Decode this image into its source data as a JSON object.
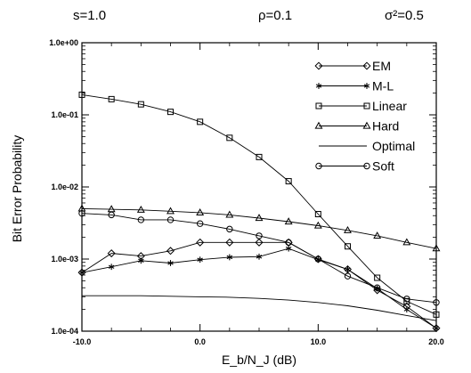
{
  "header": {
    "params": [
      "s=1.0",
      "ρ=0.1",
      "σ²=0.5"
    ]
  },
  "chart_data": {
    "type": "line",
    "title": "",
    "xlabel": "E_b/N_J (dB)",
    "ylabel": "Bit Error Probability",
    "xlim": [
      -10,
      20
    ],
    "ylim": [
      0.0001,
      1
    ],
    "yscale": "log",
    "grid": false,
    "legend_position": "top-right",
    "xticks": [
      -10,
      0,
      10,
      20
    ],
    "xtick_labels": [
      "-10.0",
      "0.0",
      "10.0",
      "20.0"
    ],
    "yticks": [
      0.0001,
      0.001,
      0.01,
      0.1,
      1
    ],
    "ytick_labels": [
      "1.0e-04",
      "1.0e-03",
      "1.0e-02",
      "1.0e-01",
      "1.0e+00"
    ],
    "series": [
      {
        "name": "EM",
        "marker": "diamond",
        "x": [
          -10,
          -7.5,
          -5,
          -2.5,
          0,
          2.5,
          5,
          7.5,
          10,
          12.5,
          15,
          17.5,
          20
        ],
        "y": [
          0.00065,
          0.0012,
          0.0011,
          0.0013,
          0.0017,
          0.0017,
          0.0017,
          0.0017,
          0.001,
          0.00072,
          0.00037,
          0.00022,
          0.00011
        ]
      },
      {
        "name": "M-L",
        "marker": "star",
        "x": [
          -10,
          -7.5,
          -5,
          -2.5,
          0,
          2.5,
          5,
          7.5,
          10,
          12.5,
          15,
          17.5,
          20
        ],
        "y": [
          0.00065,
          0.00078,
          0.00095,
          0.00088,
          0.00098,
          0.00106,
          0.00108,
          0.0014,
          0.00098,
          0.00072,
          0.00039,
          0.0002,
          0.00011
        ]
      },
      {
        "name": "Linear",
        "marker": "square",
        "x": [
          -10,
          -7.5,
          -5,
          -2.5,
          0,
          2.5,
          5,
          7.5,
          10,
          12.5,
          15,
          17.5,
          20
        ],
        "y": [
          0.19,
          0.165,
          0.14,
          0.11,
          0.08,
          0.048,
          0.026,
          0.012,
          0.0042,
          0.0015,
          0.00055,
          0.00026,
          0.00017
        ]
      },
      {
        "name": "Hard",
        "marker": "triangle",
        "x": [
          -10,
          -7.5,
          -5,
          -2.5,
          0,
          2.5,
          5,
          7.5,
          10,
          12.5,
          15,
          17.5,
          20
        ],
        "y": [
          0.005,
          0.0049,
          0.0048,
          0.0046,
          0.0044,
          0.0041,
          0.0037,
          0.0033,
          0.0029,
          0.0025,
          0.0021,
          0.0017,
          0.0014
        ]
      },
      {
        "name": "Optimal",
        "marker": "none",
        "x": [
          -10,
          -7.5,
          -5,
          -2.5,
          0,
          2.5,
          5,
          7.5,
          10,
          12.5,
          15,
          17.5,
          20
        ],
        "y": [
          0.00031,
          0.00031,
          0.00031,
          0.000305,
          0.0003,
          0.000295,
          0.000285,
          0.00027,
          0.00025,
          0.000225,
          0.000195,
          0.000165,
          0.00014
        ]
      },
      {
        "name": "Soft",
        "marker": "circle",
        "x": [
          -10,
          -7.5,
          -5,
          -2.5,
          0,
          2.5,
          5,
          7.5,
          10,
          12.5,
          15,
          17.5,
          20
        ],
        "y": [
          0.0043,
          0.0041,
          0.0035,
          0.0035,
          0.0031,
          0.0026,
          0.0021,
          0.0017,
          0.001,
          0.00058,
          0.0004,
          0.00028,
          0.00025
        ]
      }
    ]
  }
}
